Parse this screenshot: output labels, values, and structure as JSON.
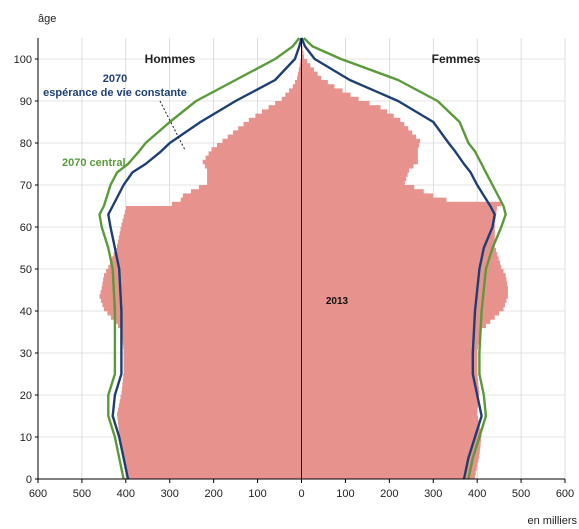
{
  "chart_data": {
    "type": "population-pyramid",
    "ylabel": "âge",
    "xlabel": "en milliers",
    "left_label": "Hommes",
    "right_label": "Femmes",
    "x_ticks_left": [
      "600",
      "500",
      "400",
      "300",
      "200",
      "100",
      "0"
    ],
    "x_ticks_right": [
      "100",
      "200",
      "300",
      "400",
      "500",
      "600"
    ],
    "y_ticks": [
      "0",
      "10",
      "20",
      "30",
      "40",
      "50",
      "60",
      "70",
      "80",
      "90",
      "100"
    ],
    "xlim": [
      -600,
      600
    ],
    "ylim": [
      0,
      105
    ],
    "grid": true,
    "colors": {
      "bars": "#e8928d",
      "central": "#5a9a3a",
      "constant": "#1e3f73",
      "axis": "#000000",
      "grid": "#c8c8c8"
    },
    "series": [
      {
        "name": "2013",
        "style": "bars",
        "ages": [
          0,
          5,
          10,
          15,
          20,
          25,
          30,
          35,
          40,
          43,
          45,
          48,
          50,
          55,
          60,
          64,
          65,
          66,
          67,
          70,
          73,
          75,
          78,
          80,
          85,
          88,
          90,
          93,
          95,
          98,
          100,
          103
        ],
        "men": [
          395,
          405,
          415,
          420,
          410,
          405,
          405,
          410,
          450,
          460,
          455,
          450,
          440,
          420,
          410,
          400,
          295,
          275,
          270,
          215,
          215,
          225,
          205,
          180,
          120,
          75,
          45,
          20,
          10,
          4,
          1,
          0
        ],
        "women": [
          395,
          405,
          410,
          400,
          405,
          400,
          400,
          410,
          460,
          470,
          470,
          465,
          455,
          440,
          440,
          445,
          455,
          330,
          300,
          235,
          245,
          265,
          265,
          270,
          225,
          180,
          130,
          75,
          45,
          20,
          6,
          1
        ]
      },
      {
        "name": "2070 central",
        "style": "line",
        "ages": [
          0,
          5,
          10,
          15,
          20,
          25,
          30,
          40,
          50,
          55,
          60,
          63,
          65,
          70,
          73,
          75,
          78,
          80,
          85,
          90,
          95,
          100,
          103,
          105
        ],
        "men": [
          405,
          415,
          425,
          440,
          440,
          425,
          425,
          425,
          430,
          440,
          455,
          460,
          450,
          435,
          420,
          395,
          370,
          355,
          300,
          240,
          150,
          60,
          20,
          5
        ],
        "women": [
          380,
          390,
          405,
          420,
          415,
          405,
          405,
          410,
          420,
          435,
          455,
          465,
          460,
          435,
          420,
          410,
          395,
          380,
          360,
          310,
          220,
          90,
          25,
          5
        ]
      },
      {
        "name": "2070\nespérance de vie constante",
        "style": "line",
        "ages": [
          0,
          5,
          10,
          15,
          20,
          25,
          30,
          40,
          50,
          55,
          60,
          63,
          65,
          70,
          73,
          75,
          78,
          80,
          85,
          90,
          95,
          100,
          103,
          105
        ],
        "men": [
          395,
          405,
          415,
          430,
          425,
          410,
          410,
          410,
          415,
          425,
          435,
          440,
          430,
          405,
          385,
          355,
          320,
          300,
          230,
          150,
          60,
          15,
          5,
          0
        ],
        "women": [
          370,
          380,
          395,
          410,
          400,
          390,
          390,
          395,
          405,
          415,
          435,
          440,
          430,
          400,
          385,
          370,
          350,
          335,
          300,
          220,
          110,
          30,
          8,
          0
        ]
      }
    ],
    "annotations": {
      "bar_label": "2013",
      "central_label": "2070 central",
      "constant_label_line1": "2070",
      "constant_label_line2": "espérance de vie constante"
    }
  }
}
